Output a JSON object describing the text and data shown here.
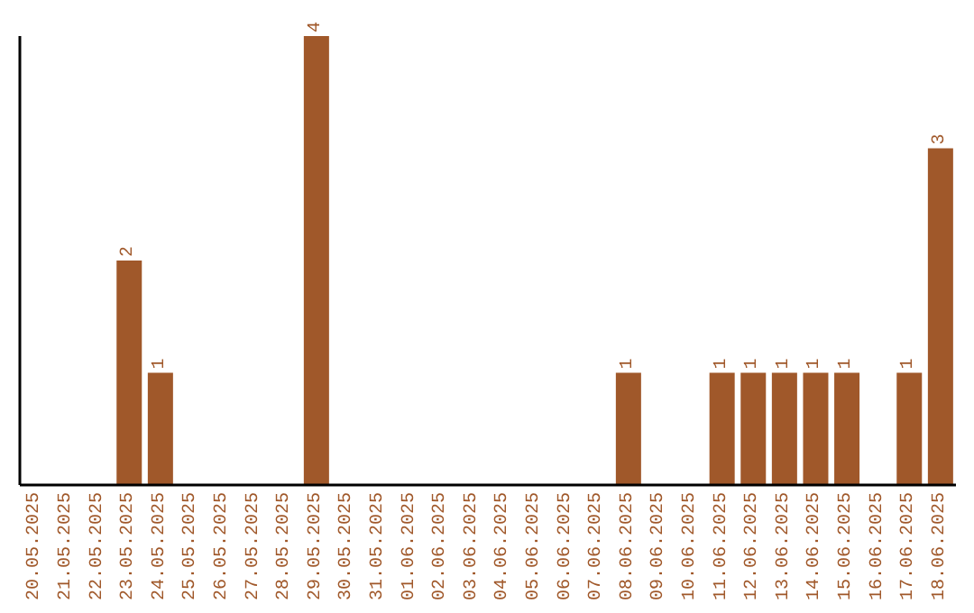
{
  "chart_data": {
    "type": "bar",
    "categories": [
      "20.05.2025",
      "21.05.2025",
      "22.05.2025",
      "23.05.2025",
      "24.05.2025",
      "25.05.2025",
      "26.05.2025",
      "27.05.2025",
      "28.05.2025",
      "29.05.2025",
      "30.05.2025",
      "31.05.2025",
      "01.06.2025",
      "02.06.2025",
      "03.06.2025",
      "04.06.2025",
      "05.06.2025",
      "06.06.2025",
      "07.06.2025",
      "08.06.2025",
      "09.06.2025",
      "10.06.2025",
      "11.06.2025",
      "12.06.2025",
      "13.06.2025",
      "14.06.2025",
      "15.06.2025",
      "16.06.2025",
      "17.06.2025",
      "18.06.2025"
    ],
    "values": [
      0,
      0,
      0,
      2,
      1,
      0,
      0,
      0,
      0,
      4,
      0,
      0,
      0,
      0,
      0,
      0,
      0,
      0,
      0,
      1,
      0,
      0,
      1,
      1,
      1,
      1,
      1,
      0,
      1,
      3
    ],
    "value_labels": [
      null,
      null,
      null,
      "2",
      "1",
      null,
      null,
      null,
      null,
      "4",
      null,
      null,
      null,
      null,
      null,
      null,
      null,
      null,
      null,
      "1",
      null,
      null,
      "1",
      "1",
      "1",
      "1",
      "1",
      null,
      "1",
      "3"
    ],
    "color": "#a0582a",
    "ylim": [
      0,
      4
    ],
    "tick_labels": "x"
  }
}
